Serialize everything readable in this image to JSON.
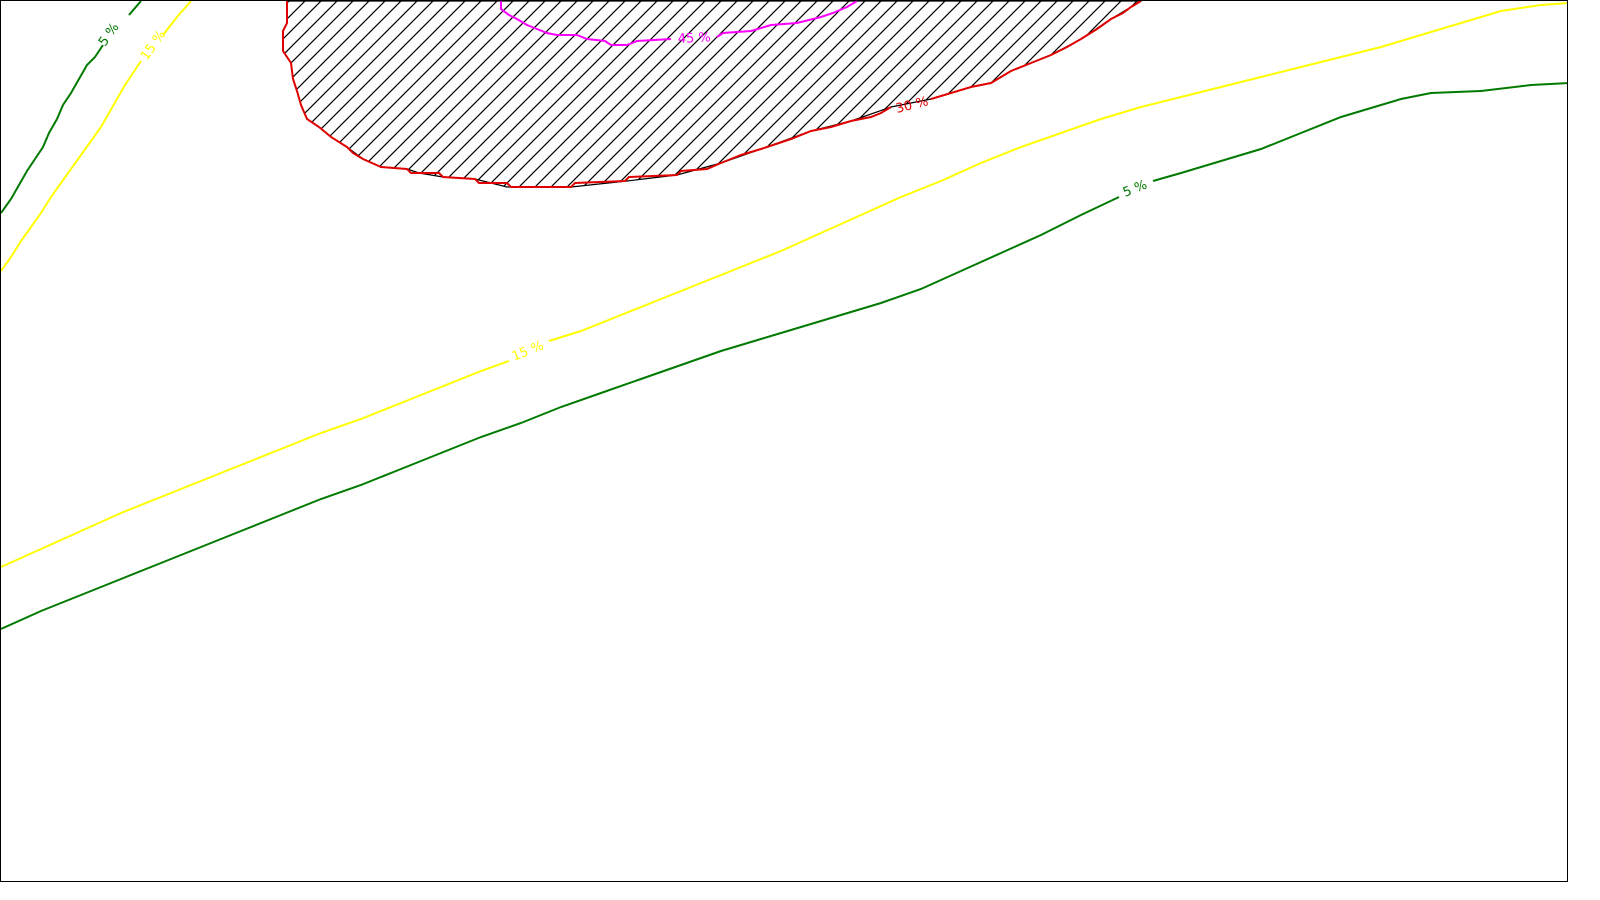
{
  "map": {
    "colors": {
      "background": "#ffffff",
      "frame": "#000000",
      "hatch": "#000000",
      "hatch_outline": "#000000",
      "contour_5": "#007a00",
      "contour_15": "#ffff00",
      "contour_30": "#e00000",
      "contour_45": "#ff00ff"
    },
    "contours": [
      {
        "level": "5 %",
        "color_key": "contour_5"
      },
      {
        "level": "15 %",
        "color_key": "contour_15"
      },
      {
        "level": "30 %",
        "color_key": "contour_30"
      },
      {
        "level": "45 %",
        "color_key": "contour_45"
      }
    ],
    "labels": {
      "contour_5_upper": "5 %",
      "contour_5_lower": "5 %",
      "contour_15_upper": "15 %",
      "contour_15_lower": "15 %",
      "contour_30": "30 %",
      "contour_45": "45 %"
    },
    "hatched_region": "diagonal-hatch"
  }
}
